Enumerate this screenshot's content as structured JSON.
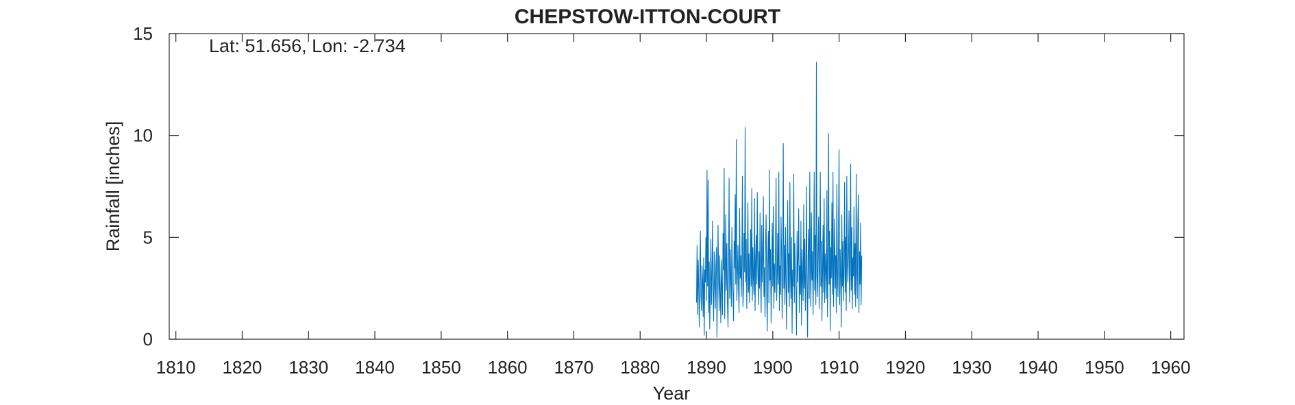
{
  "chart_data": {
    "type": "line",
    "title": "CHEPSTOW-ITTON-COURT",
    "annotation": "Lat: 51.656, Lon: -2.734",
    "xlabel": "Year",
    "ylabel": "Rainfall [inches]",
    "xlim": [
      1809,
      1962
    ],
    "ylim": [
      0,
      15
    ],
    "xticks": [
      1810,
      1820,
      1830,
      1840,
      1850,
      1860,
      1870,
      1880,
      1890,
      1900,
      1910,
      1920,
      1930,
      1940,
      1950,
      1960
    ],
    "yticks": [
      0,
      5,
      10,
      15
    ],
    "grid": false,
    "series": [
      {
        "color": "#0072BD",
        "x_start": 1888.5,
        "x_step": 0.0833,
        "values": [
          1.8,
          4.6,
          1.2,
          3.9,
          2.5,
          0.6,
          3.2,
          5.3,
          2.1,
          1.4,
          3.6,
          2.9,
          1.1,
          4.0,
          0.2,
          3.4,
          2.8,
          5.0,
          1.9,
          8.3,
          2.6,
          7.8,
          1.3,
          3.8,
          0.5,
          2.4,
          4.9,
          1.7,
          3.1,
          5.8,
          2.2,
          0.9,
          4.3,
          2.7,
          1.5,
          3.6,
          4.5,
          0.1,
          2.9,
          5.6,
          3.0,
          1.4,
          4.1,
          2.3,
          0.8,
          3.9,
          2.6,
          1.2,
          5.2,
          3.4,
          8.4,
          1.0,
          3.3,
          6.1,
          2.4,
          4.7,
          1.8,
          0.6,
          3.7,
          7.9,
          2.0,
          4.4,
          2.9,
          1.6,
          5.5,
          3.1,
          2.2,
          0.9,
          4.8,
          3.5,
          7.1,
          2.7,
          9.8,
          1.9,
          3.2,
          4.6,
          2.5,
          1.3,
          6.4,
          3.0,
          4.1,
          2.1,
          3.7,
          8.0,
          1.6,
          2.4,
          5.2,
          3.3,
          10.4,
          2.8,
          4.9,
          1.5,
          3.6,
          6.7,
          2.3,
          4.2,
          1.8,
          3.1,
          5.4,
          2.6,
          7.4,
          1.9,
          4.5,
          3.0,
          2.2,
          6.9,
          1.4,
          3.8,
          5.1,
          2.7,
          7.2,
          3.4,
          1.7,
          4.3,
          2.5,
          6.2,
          3.1,
          1.3,
          5.6,
          2.8,
          4.0,
          7.0,
          2.1,
          3.5,
          1.1,
          4.7,
          6.1,
          2.4,
          0.4,
          3.9,
          5.3,
          1.8,
          8.3,
          2.9,
          4.4,
          0.8,
          3.2,
          5.7,
          2.6,
          6.5,
          1.5,
          3.7,
          2.3,
          4.8,
          7.9,
          1.9,
          3.0,
          5.2,
          2.7,
          8.2,
          1.4,
          3.6,
          2.2,
          6.0,
          4.1,
          1.0,
          3.3,
          9.6,
          2.5,
          4.6,
          1.7,
          5.5,
          2.9,
          0.5,
          3.8,
          6.8,
          2.3,
          4.2,
          1.6,
          7.7,
          3.1,
          2.0,
          5.0,
          0.3,
          3.4,
          2.6,
          8.1,
          1.8,
          4.7,
          3.2,
          2.4,
          0.2,
          5.3,
          2.8,
          4.0,
          6.4,
          1.3,
          3.6,
          2.2,
          5.8,
          0.7,
          4.4,
          3.0,
          1.9,
          6.6,
          2.5,
          4.9,
          1.4,
          3.3,
          7.5,
          2.7,
          0.1,
          4.1,
          5.4,
          2.0,
          8.2,
          3.5,
          1.6,
          6.2,
          2.9,
          4.3,
          1.2,
          3.8,
          8.2,
          2.4,
          5.1,
          1.7,
          13.6,
          3.2,
          2.1,
          4.6,
          6.0,
          1.5,
          3.7,
          8.2,
          2.6,
          4.8,
          0.9,
          3.1,
          5.6,
          2.3,
          6.9,
          1.8,
          4.2,
          3.4,
          2.0,
          7.3,
          1.1,
          3.9,
          10.1,
          2.7,
          5.3,
          0.4,
          4.5,
          3.0,
          6.7,
          2.2,
          8.2,
          1.6,
          3.6,
          5.9,
          2.5,
          4.1,
          1.3,
          7.6,
          3.3,
          2.1,
          5.2,
          9.3,
          1.7,
          4.4,
          3.0,
          0.6,
          6.1,
          2.6,
          4.8,
          1.9,
          3.5,
          7.7,
          2.3,
          5.0,
          1.4,
          8.0,
          3.7,
          2.8,
          4.2,
          6.3,
          1.8,
          3.2,
          8.6,
          2.4,
          5.5,
          1.5,
          4.0,
          3.1,
          6.5,
          2.2,
          4.7,
          1.6,
          8.1,
          3.4,
          2.0,
          5.8,
          7.1,
          1.3,
          4.3,
          2.7,
          5.7,
          1.7,
          4.1
        ]
      }
    ]
  }
}
